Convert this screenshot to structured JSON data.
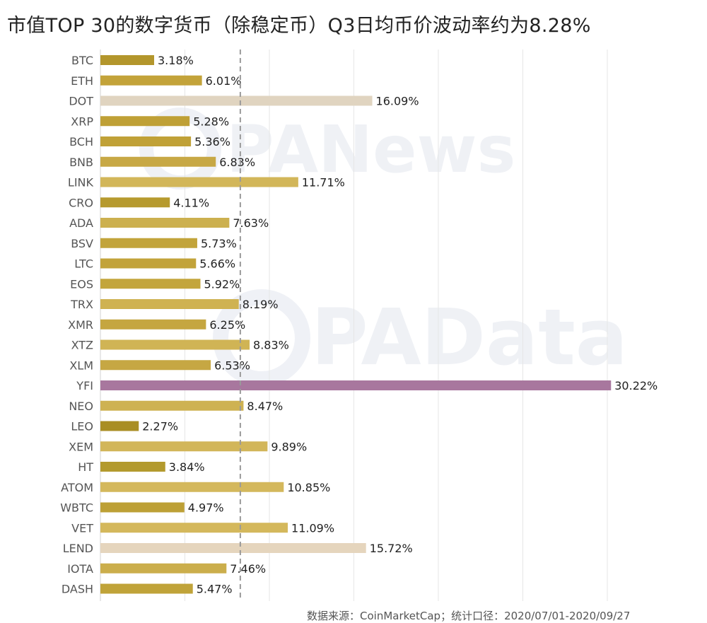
{
  "chart_data": {
    "type": "bar",
    "orientation": "horizontal",
    "title": "市值TOP 30的数字货币（除稳定币）Q3日均币价波动率约为8.28%",
    "categories": [
      "BTC",
      "ETH",
      "DOT",
      "XRP",
      "BCH",
      "BNB",
      "LINK",
      "CRO",
      "ADA",
      "BSV",
      "LTC",
      "EOS",
      "TRX",
      "XMR",
      "XTZ",
      "XLM",
      "YFI",
      "NEO",
      "LEO",
      "XEM",
      "HT",
      "ATOM",
      "WBTC",
      "VET",
      "LEND",
      "IOTA",
      "DASH"
    ],
    "values": [
      3.18,
      6.01,
      16.09,
      5.28,
      5.36,
      6.83,
      11.71,
      4.11,
      7.63,
      5.73,
      5.66,
      5.92,
      8.19,
      6.25,
      8.83,
      6.53,
      30.22,
      8.47,
      2.27,
      9.89,
      3.84,
      10.85,
      4.97,
      11.09,
      15.72,
      7.46,
      5.47
    ],
    "value_labels": [
      "3.18%",
      "6.01%",
      "16.09%",
      "5.28%",
      "5.36%",
      "6.83%",
      "11.71%",
      "4.11%",
      "7.63%",
      "5.73%",
      "5.66%",
      "5.92%",
      "8.19%",
      "6.25%",
      "8.83%",
      "6.53%",
      "30.22%",
      "8.47%",
      "2.27%",
      "9.89%",
      "3.84%",
      "10.85%",
      "4.97%",
      "11.09%",
      "15.72%",
      "7.46%",
      "5.47%"
    ],
    "colors": [
      "#b3962c",
      "#c3a33a",
      "#e0d4c0",
      "#bfa036",
      "#c0a137",
      "#c7a845",
      "#d2b659",
      "#b69a2e",
      "#ccb04f",
      "#c2a43b",
      "#c2a33a",
      "#c3a53c",
      "#cfb251",
      "#c5a640",
      "#d0b455",
      "#c6a743",
      "#a8779e",
      "#ceb252",
      "#a98e24",
      "#d2b65a",
      "#b39a2e",
      "#d4b85c",
      "#bda036",
      "#d4b85c",
      "#e5d5bd",
      "#cbae4c",
      "#c0a339"
    ],
    "reference_line": 8.28,
    "xlim": [
      0,
      32
    ],
    "grid": true
  },
  "watermarks": [
    "PANews",
    "PAData"
  ],
  "source_note": "数据来源：CoinMarketCap；统计口径：2020/07/01-2020/09/27"
}
